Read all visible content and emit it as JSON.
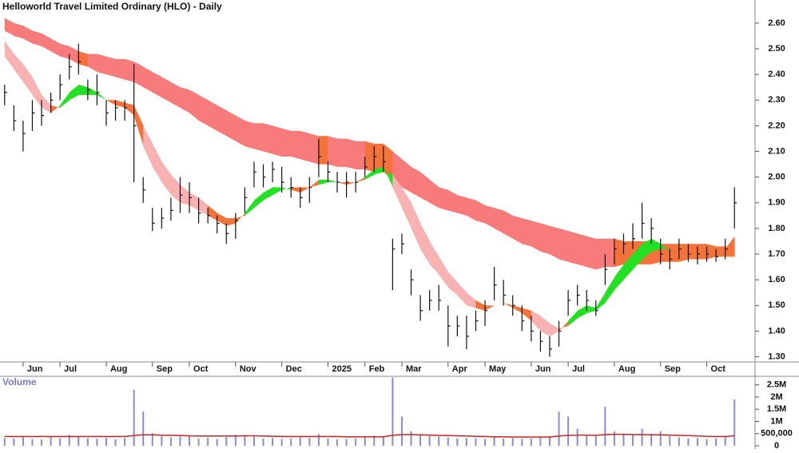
{
  "chart_data": [
    {
      "type": "ohlc",
      "title": "Helloworld Travel Limited Ordinary (HLO) - Daily",
      "categories": [
        null,
        null,
        "Jun",
        null,
        null,
        null,
        "Jul",
        null,
        null,
        null,
        null,
        "Aug",
        null,
        null,
        null,
        null,
        "Sep",
        null,
        null,
        null,
        "Oct",
        null,
        null,
        null,
        null,
        "Nov",
        null,
        null,
        null,
        null,
        "Dec",
        null,
        null,
        null,
        null,
        "2025",
        null,
        null,
        null,
        "Feb",
        null,
        null,
        null,
        "Mar",
        null,
        null,
        null,
        null,
        "Apr",
        null,
        null,
        null,
        "May",
        null,
        null,
        null,
        null,
        "Jun",
        null,
        null,
        null,
        "Jul",
        null,
        null,
        null,
        null,
        "Aug",
        null,
        null,
        null,
        null,
        "Sep",
        null,
        null,
        null,
        null,
        "Oct",
        null,
        null,
        null
      ],
      "high": [
        2.36,
        2.28,
        2.22,
        2.3,
        2.3,
        2.33,
        2.4,
        2.48,
        2.52,
        2.38,
        2.4,
        2.3,
        2.3,
        2.3,
        2.44,
        2.0,
        1.88,
        1.88,
        1.92,
        2.0,
        1.98,
        1.92,
        1.88,
        1.85,
        1.82,
        1.86,
        1.96,
        2.06,
        2.05,
        2.06,
        2.04,
        2.0,
        1.96,
        2.0,
        2.15,
        2.06,
        2.02,
        2.02,
        2.02,
        2.08,
        2.12,
        2.12,
        1.76,
        1.78,
        1.64,
        1.54,
        1.56,
        1.58,
        1.5,
        1.46,
        1.46,
        1.48,
        1.52,
        1.65,
        1.6,
        1.54,
        1.5,
        1.46,
        1.4,
        1.38,
        1.44,
        1.56,
        1.58,
        1.56,
        1.52,
        1.7,
        1.76,
        1.78,
        1.82,
        1.9,
        1.84,
        1.76,
        1.72,
        1.76,
        1.74,
        1.73,
        1.73,
        1.72,
        1.76,
        1.96
      ],
      "low": [
        2.28,
        2.18,
        2.1,
        2.18,
        2.2,
        2.25,
        2.3,
        2.38,
        2.4,
        2.3,
        2.28,
        2.2,
        2.22,
        2.22,
        1.98,
        1.9,
        1.79,
        1.8,
        1.83,
        1.86,
        1.86,
        1.82,
        1.82,
        1.78,
        1.74,
        1.76,
        1.86,
        1.96,
        1.96,
        1.98,
        1.94,
        1.92,
        1.88,
        1.9,
        2.0,
        1.98,
        1.94,
        1.92,
        1.94,
        2.0,
        2.02,
        2.02,
        1.56,
        1.7,
        1.54,
        1.44,
        1.48,
        1.48,
        1.34,
        1.38,
        1.33,
        1.4,
        1.42,
        1.52,
        1.5,
        1.46,
        1.4,
        1.36,
        1.32,
        1.3,
        1.34,
        1.46,
        1.5,
        1.48,
        1.46,
        1.58,
        1.66,
        1.7,
        1.72,
        1.76,
        1.74,
        1.66,
        1.64,
        1.68,
        1.67,
        1.66,
        1.67,
        1.67,
        1.68,
        1.8
      ],
      "close": [
        2.33,
        2.22,
        2.17,
        2.25,
        2.24,
        2.3,
        2.36,
        2.43,
        2.45,
        2.34,
        2.33,
        2.25,
        2.27,
        2.27,
        2.2,
        1.95,
        1.82,
        1.84,
        1.87,
        1.93,
        1.92,
        1.86,
        1.85,
        1.82,
        1.78,
        1.83,
        1.92,
        2.02,
        2.0,
        2.03,
        1.98,
        1.96,
        1.92,
        1.96,
        2.08,
        2.02,
        1.98,
        1.98,
        1.98,
        2.04,
        2.08,
        2.06,
        1.72,
        1.74,
        1.6,
        1.48,
        1.52,
        1.52,
        1.42,
        1.42,
        1.38,
        1.44,
        1.48,
        1.58,
        1.54,
        1.5,
        1.44,
        1.4,
        1.36,
        1.33,
        1.4,
        1.52,
        1.54,
        1.52,
        1.48,
        1.64,
        1.72,
        1.74,
        1.76,
        1.82,
        1.8,
        1.7,
        1.68,
        1.72,
        1.7,
        1.7,
        1.7,
        1.69,
        1.72,
        1.9
      ],
      "bar_color": "#111111",
      "long_band": {
        "upper": [
          2.62,
          2.6,
          2.59,
          2.57,
          2.56,
          2.54,
          2.52,
          2.51,
          2.49,
          2.48,
          2.48,
          2.47,
          2.46,
          2.46,
          2.45,
          2.43,
          2.41,
          2.39,
          2.37,
          2.35,
          2.34,
          2.32,
          2.3,
          2.28,
          2.26,
          2.24,
          2.22,
          2.21,
          2.21,
          2.2,
          2.19,
          2.18,
          2.18,
          2.17,
          2.16,
          2.16,
          2.15,
          2.15,
          2.14,
          2.14,
          2.13,
          2.13,
          2.1,
          2.07,
          2.04,
          2.02,
          1.99,
          1.96,
          1.95,
          1.93,
          1.92,
          1.91,
          1.89,
          1.88,
          1.87,
          1.85,
          1.84,
          1.83,
          1.82,
          1.81,
          1.8,
          1.79,
          1.78,
          1.77,
          1.76,
          1.76,
          1.76,
          1.75,
          1.75,
          1.75,
          1.75,
          1.74,
          1.74,
          1.74,
          1.74,
          1.74,
          1.74,
          1.73,
          1.73,
          1.73
        ],
        "lower": [
          2.57,
          2.55,
          2.54,
          2.52,
          2.51,
          2.49,
          2.47,
          2.46,
          2.44,
          2.43,
          2.41,
          2.4,
          2.39,
          2.38,
          2.37,
          2.35,
          2.33,
          2.31,
          2.29,
          2.27,
          2.25,
          2.22,
          2.2,
          2.18,
          2.16,
          2.14,
          2.12,
          2.11,
          2.1,
          2.09,
          2.08,
          2.08,
          2.07,
          2.06,
          2.05,
          2.05,
          2.04,
          2.04,
          2.03,
          2.03,
          2.02,
          2.02,
          1.99,
          1.96,
          1.94,
          1.92,
          1.9,
          1.88,
          1.87,
          1.86,
          1.85,
          1.83,
          1.82,
          1.8,
          1.78,
          1.76,
          1.74,
          1.73,
          1.71,
          1.7,
          1.68,
          1.67,
          1.66,
          1.65,
          1.64,
          1.65,
          1.65,
          1.66,
          1.66,
          1.66,
          1.66,
          1.67,
          1.67,
          1.67,
          1.68,
          1.68,
          1.68,
          1.69,
          1.69,
          1.69
        ],
        "color": "#f77b7b",
        "alt_color": "#f4733a"
      },
      "short_band": {
        "fast": [
          2.47,
          2.42,
          2.37,
          2.32,
          2.27,
          2.25,
          2.28,
          2.33,
          2.36,
          2.35,
          2.33,
          2.3,
          2.28,
          2.27,
          2.24,
          2.12,
          2.04,
          1.98,
          1.93,
          1.9,
          1.89,
          1.87,
          1.85,
          1.83,
          1.81,
          1.82,
          1.86,
          1.91,
          1.94,
          1.96,
          1.96,
          1.95,
          1.94,
          1.96,
          1.99,
          1.99,
          1.98,
          1.97,
          1.98,
          2.0,
          2.03,
          2.04,
          1.96,
          1.88,
          1.8,
          1.72,
          1.66,
          1.62,
          1.57,
          1.54,
          1.5,
          1.49,
          1.48,
          1.5,
          1.51,
          1.49,
          1.47,
          1.44,
          1.4,
          1.38,
          1.4,
          1.44,
          1.48,
          1.5,
          1.49,
          1.55,
          1.61,
          1.66,
          1.7,
          1.74,
          1.76,
          1.74,
          1.71,
          1.71,
          1.71,
          1.7,
          1.7,
          1.7,
          1.72,
          1.77
        ],
        "slow": [
          2.53,
          2.48,
          2.44,
          2.39,
          2.32,
          2.28,
          2.27,
          2.3,
          2.32,
          2.32,
          2.32,
          2.3,
          2.3,
          2.29,
          2.28,
          2.2,
          2.13,
          2.06,
          2.01,
          1.97,
          1.94,
          1.92,
          1.89,
          1.86,
          1.84,
          1.84,
          1.85,
          1.88,
          1.91,
          1.93,
          1.95,
          1.96,
          1.96,
          1.96,
          1.97,
          1.98,
          1.98,
          1.98,
          1.98,
          1.99,
          2.01,
          2.02,
          2.01,
          1.96,
          1.9,
          1.82,
          1.75,
          1.69,
          1.63,
          1.59,
          1.55,
          1.52,
          1.5,
          1.5,
          1.51,
          1.5,
          1.49,
          1.48,
          1.46,
          1.43,
          1.41,
          1.42,
          1.45,
          1.47,
          1.48,
          1.51,
          1.56,
          1.6,
          1.64,
          1.68,
          1.71,
          1.72,
          1.72,
          1.72,
          1.72,
          1.72,
          1.72,
          1.72,
          1.72,
          1.72
        ],
        "up_color": "#22e022",
        "flat_color": "#f4733a",
        "down_color": "#f9b2b2"
      },
      "ylim": [
        1.28,
        2.69
      ],
      "yticks": [
        {
          "value": 1.3,
          "label": "1.30"
        },
        {
          "value": 1.4,
          "label": "1.40"
        },
        {
          "value": 1.5,
          "label": "1.50"
        },
        {
          "value": 1.6,
          "label": "1.60"
        },
        {
          "value": 1.7,
          "label": "1.70"
        },
        {
          "value": 1.8,
          "label": "1.80"
        },
        {
          "value": 1.9,
          "label": "1.90"
        },
        {
          "value": 2.0,
          "label": "2.00"
        },
        {
          "value": 2.1,
          "label": "2.10"
        },
        {
          "value": 2.2,
          "label": "2.20"
        },
        {
          "value": 2.3,
          "label": "2.30"
        },
        {
          "value": 2.4,
          "label": "2.40"
        },
        {
          "value": 2.5,
          "label": "2.50"
        },
        {
          "value": 2.6,
          "label": "2.60"
        }
      ]
    },
    {
      "type": "bar",
      "title": "Volume",
      "values": [
        320000,
        300000,
        350000,
        280000,
        260000,
        400000,
        310000,
        450000,
        380000,
        300000,
        290000,
        330000,
        270000,
        310000,
        2300000,
        1400000,
        520000,
        400000,
        350000,
        380000,
        420000,
        300000,
        330000,
        280000,
        360000,
        450000,
        400000,
        380000,
        300000,
        320000,
        280000,
        300000,
        350000,
        320000,
        480000,
        300000,
        260000,
        280000,
        300000,
        350000,
        420000,
        380000,
        2800000,
        1200000,
        600000,
        450000,
        400000,
        380000,
        350000,
        300000,
        320000,
        300000,
        280000,
        350000,
        300000,
        320000,
        280000,
        300000,
        350000,
        400000,
        1400000,
        1200000,
        700000,
        450000,
        400000,
        1600000,
        600000,
        500000,
        450000,
        700000,
        500000,
        600000,
        400000,
        350000,
        300000,
        320000,
        280000,
        300000,
        400000,
        1900000
      ],
      "color": "#8a8ad0",
      "ma": {
        "values": [
          380000,
          380000,
          380000,
          380000,
          380000,
          380000,
          380000,
          380000,
          380000,
          380000,
          380000,
          380000,
          380000,
          380000,
          420000,
          450000,
          450000,
          440000,
          430000,
          420000,
          410000,
          400000,
          400000,
          400000,
          400000,
          400000,
          410000,
          410000,
          400000,
          390000,
          380000,
          380000,
          380000,
          380000,
          380000,
          380000,
          380000,
          370000,
          370000,
          370000,
          370000,
          370000,
          430000,
          460000,
          460000,
          450000,
          440000,
          430000,
          420000,
          410000,
          400000,
          390000,
          380000,
          370000,
          370000,
          360000,
          360000,
          360000,
          360000,
          360000,
          400000,
          430000,
          440000,
          440000,
          430000,
          460000,
          470000,
          470000,
          460000,
          460000,
          450000,
          450000,
          440000,
          430000,
          420000,
          400000,
          390000,
          380000,
          380000,
          410000
        ],
        "color": "#cc2222"
      },
      "ylim": [
        0,
        2850000
      ],
      "yticks": [
        0,
        {
          "value": 500000,
          "label": "500,000"
        },
        {
          "value": 1000000,
          "label": "1M"
        },
        {
          "value": 1500000,
          "label": "1.5M"
        },
        {
          "value": 2000000,
          "label": "2M"
        },
        {
          "value": 2500000,
          "label": "2.5M"
        }
      ]
    }
  ]
}
